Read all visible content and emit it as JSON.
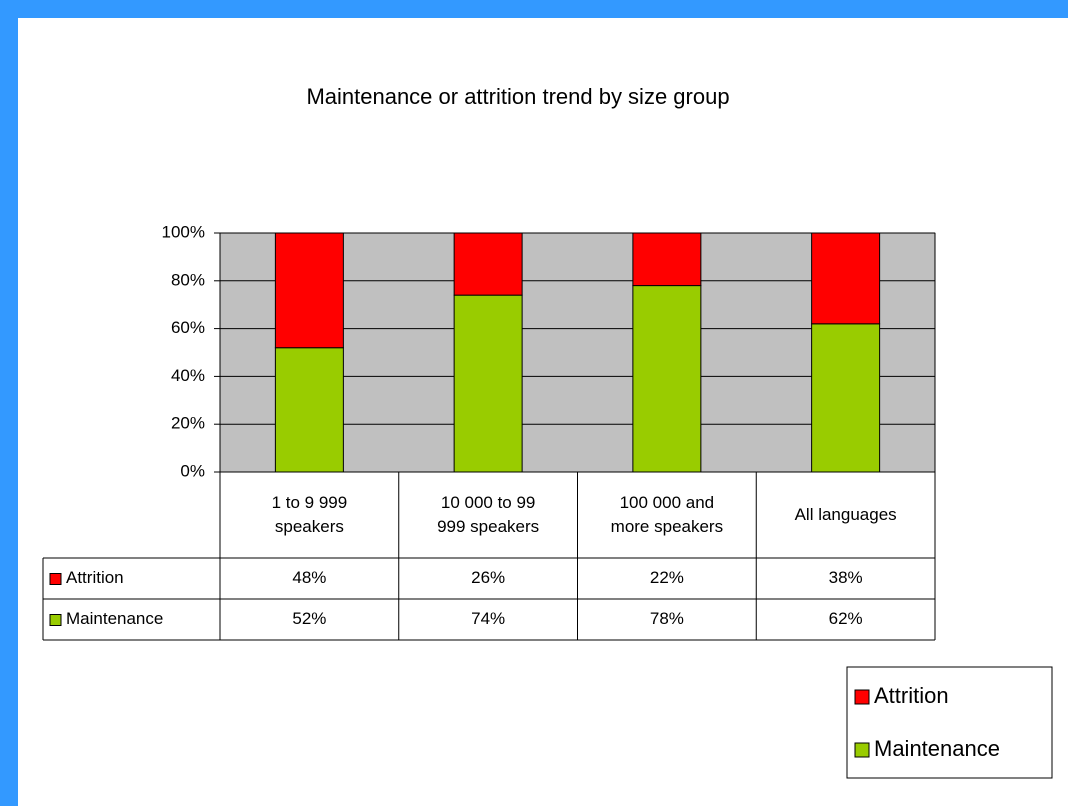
{
  "chart_data": {
    "type": "stacked_bar",
    "title": "Maintenance or attrition trend by size group",
    "categories": [
      "1 to 9 999 speakers",
      "10 000 to 99 999 speakers",
      "100 000 and more speakers",
      "All languages"
    ],
    "series": [
      {
        "name": "Attrition",
        "color": "#ff0000",
        "values": [
          48,
          26,
          22,
          38
        ],
        "value_labels": [
          "48%",
          "26%",
          "22%",
          "38%"
        ]
      },
      {
        "name": "Maintenance",
        "color": "#99cc00",
        "values": [
          52,
          74,
          78,
          62
        ],
        "value_labels": [
          "52%",
          "74%",
          "78%",
          "62%"
        ]
      }
    ],
    "ylim": [
      0,
      100
    ],
    "yticks": [
      {
        "value": 0,
        "label": "0%"
      },
      {
        "value": 20,
        "label": "20%"
      },
      {
        "value": 40,
        "label": "40%"
      },
      {
        "value": 60,
        "label": "60%"
      },
      {
        "value": 80,
        "label": "80%"
      },
      {
        "value": 100,
        "label": "100%"
      }
    ],
    "grid": true,
    "legend": "bottom-right"
  }
}
